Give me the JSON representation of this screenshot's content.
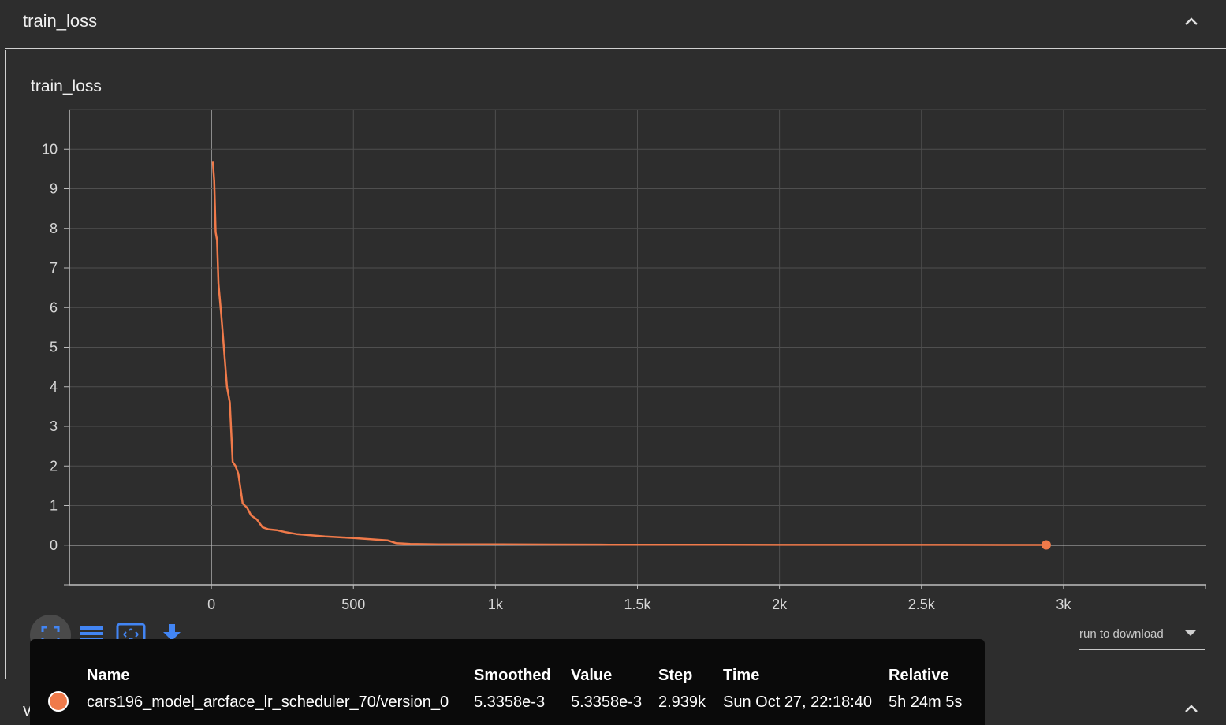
{
  "section": {
    "title": "train_loss"
  },
  "card": {
    "title": "train_loss"
  },
  "toolbar": {
    "buttons": [
      "fullscreen-icon",
      "list-icon",
      "fit-domain-icon",
      "download-icon"
    ]
  },
  "run_select": {
    "label": "run to download"
  },
  "next_section": {
    "title": "validation_loss"
  },
  "tooltip": {
    "headers": {
      "name": "Name",
      "smoothed": "Smoothed",
      "value": "Value",
      "step": "Step",
      "time": "Time",
      "relative": "Relative"
    },
    "row": {
      "name": "cars196_model_arcface_lr_scheduler_70/version_0",
      "smoothed": "5.3358e-3",
      "value": "5.3358e-3",
      "step": "2.939k",
      "time": "Sun Oct 27, 22:18:40",
      "relative": "5h 24m 5s"
    }
  },
  "colors": {
    "series": "#f07a4a",
    "accent": "#4285f4",
    "background": "#2d2d2d"
  },
  "chart_data": {
    "type": "line",
    "title": "train_loss",
    "xlim": [
      -500,
      3500
    ],
    "ylim": [
      -1,
      11
    ],
    "x_ticks": [
      0,
      500,
      1000,
      1500,
      2000,
      2500,
      3000
    ],
    "x_tick_labels": [
      "0",
      "500",
      "1k",
      "1.5k",
      "2k",
      "2.5k",
      "3k"
    ],
    "y_ticks": [
      0,
      1,
      2,
      3,
      4,
      5,
      6,
      7,
      8,
      9,
      10
    ],
    "y_tick_labels": [
      "0",
      "1",
      "2",
      "3",
      "4",
      "5",
      "6",
      "7",
      "8",
      "9",
      "10"
    ],
    "grid": true,
    "series": [
      {
        "name": "cars196_model_arcface_lr_scheduler_70/version_0",
        "x": [
          5,
          10,
          15,
          20,
          25,
          35,
          45,
          55,
          65,
          75,
          85,
          95,
          110,
          125,
          140,
          160,
          180,
          200,
          230,
          260,
          300,
          350,
          400,
          450,
          500,
          560,
          620,
          650,
          700,
          800,
          900,
          1000,
          1200,
          1400,
          1600,
          1800,
          2000,
          2200,
          2400,
          2600,
          2800,
          2939
        ],
        "y": [
          9.7,
          9.2,
          7.9,
          7.7,
          6.6,
          5.8,
          4.9,
          4.0,
          3.6,
          2.1,
          2.0,
          1.8,
          1.05,
          0.95,
          0.75,
          0.65,
          0.45,
          0.4,
          0.38,
          0.33,
          0.28,
          0.25,
          0.22,
          0.2,
          0.18,
          0.15,
          0.12,
          0.05,
          0.03,
          0.02,
          0.02,
          0.02,
          0.015,
          0.01,
          0.01,
          0.008,
          0.007,
          0.006,
          0.006,
          0.006,
          0.005,
          0.0053
        ]
      }
    ],
    "highlight_point": {
      "x": 2939,
      "y": 0.0053358
    }
  }
}
